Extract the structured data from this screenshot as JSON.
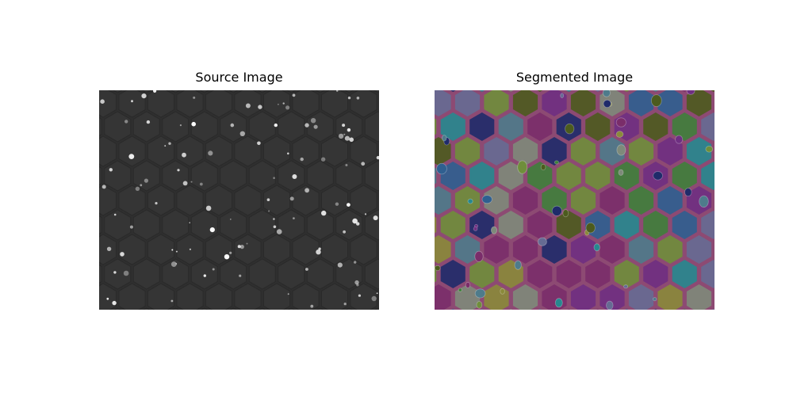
{
  "figure": {
    "left_title": "Source Image",
    "right_title": "Segmented Image"
  },
  "colors": {
    "source_background": "#2f2f2f",
    "source_cell": "#353535",
    "segmented_background": "#8d4a73",
    "segmented_palette": [
      "#3f7f3b",
      "#27888f",
      "#1f2b6a",
      "#7a2d6a",
      "#7e8a7a",
      "#6f8e3b",
      "#666b93",
      "#2f5f90",
      "#8a8a3a",
      "#4e7b8b",
      "#6f2f82",
      "#4c5b1e"
    ]
  }
}
